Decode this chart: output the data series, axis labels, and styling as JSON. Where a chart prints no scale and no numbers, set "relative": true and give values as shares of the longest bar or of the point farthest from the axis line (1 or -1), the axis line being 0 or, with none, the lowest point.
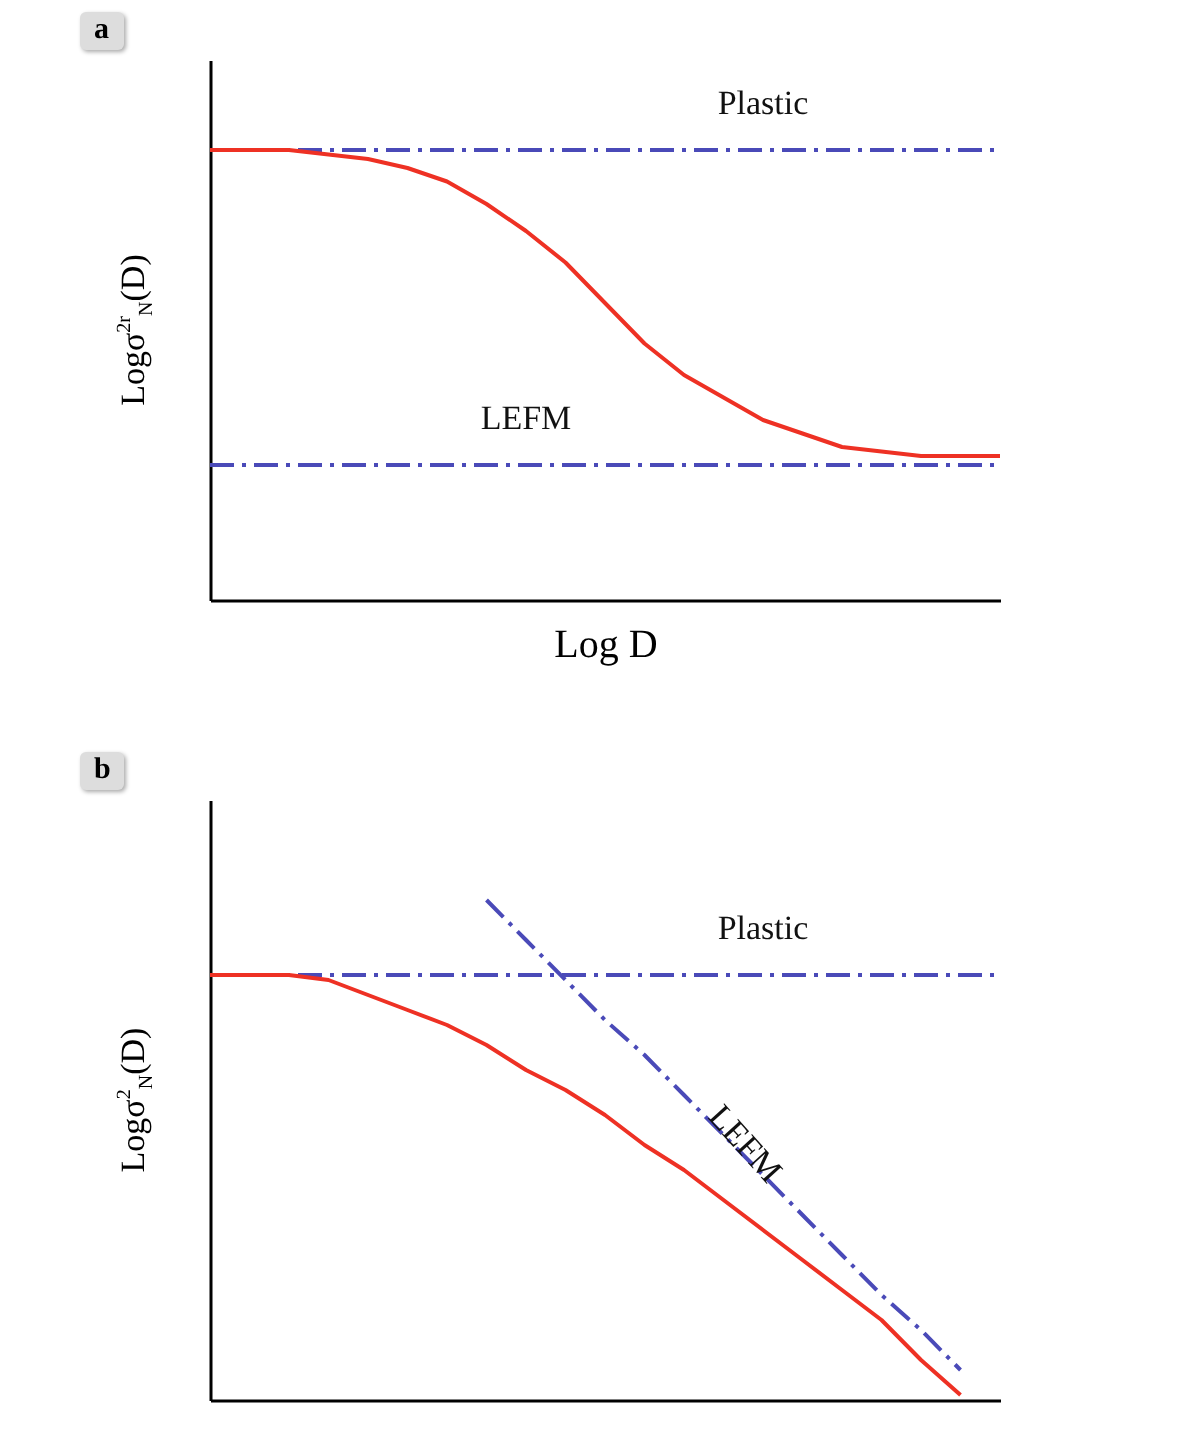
{
  "chart_data": [
    {
      "type": "line",
      "title": "a",
      "xlabel": "Log D",
      "ylabel": "Logσ$^{2r}$$_{N}$(D)",
      "relative": true,
      "grid": false,
      "legend": false,
      "marker": "none",
      "categories": [
        null,
        null,
        null,
        null,
        null,
        null,
        null,
        null,
        null,
        null,
        null,
        null,
        null,
        null,
        null,
        null,
        null,
        null,
        null,
        null,
        null
      ],
      "series": [
        {
          "color": "#ee3124",
          "line_style": "solid",
          "values": [
            1,
            1,
            1,
            0.99,
            0.98,
            0.96,
            0.93,
            0.88,
            0.82,
            0.75,
            0.66,
            0.57,
            0.5,
            0.45,
            0.4,
            0.37,
            0.34,
            0.33,
            0.32,
            0.32,
            0.32
          ]
        },
        {
          "name": "Plastic",
          "color": "#4a4ab8",
          "line_style": "dashed",
          "values": [
            1,
            1,
            1,
            1,
            1,
            1,
            1,
            1,
            1,
            1,
            1,
            1,
            1,
            1,
            1,
            1,
            1,
            1,
            1,
            1,
            1
          ]
        },
        {
          "name": "LEFM",
          "color": "#4a4ab8",
          "line_style": "dashed",
          "values": [
            0.3,
            0.3,
            0.3,
            0.3,
            0.3,
            0.3,
            0.3,
            0.3,
            0.3,
            0.3,
            0.3,
            0.3,
            0.3,
            0.3,
            0.3,
            0.3,
            0.3,
            0.3,
            0.3,
            0.3,
            0.3
          ]
        }
      ]
    },
    {
      "type": "line",
      "title": "b",
      "ylabel": "Logσ$^{2}$$_{N}$(D)",
      "relative": true,
      "grid": false,
      "legend": false,
      "marker": "none",
      "categories": [
        null,
        null,
        null,
        null,
        null,
        null,
        null,
        null,
        null,
        null,
        null,
        null,
        null,
        null,
        null,
        null,
        null,
        null,
        null,
        null,
        null
      ],
      "series": [
        {
          "color": "#ee3124",
          "line_style": "solid",
          "values": [
            0.85,
            0.85,
            0.85,
            0.84,
            0.81,
            0.78,
            0.75,
            0.71,
            0.66,
            0.62,
            0.57,
            0.51,
            0.46,
            0.4,
            0.34,
            0.28,
            0.22,
            0.16,
            0.08,
            0.01,
            null
          ]
        },
        {
          "name": "Plastic",
          "color": "#4a4ab8",
          "line_style": "dashed",
          "values": [
            0.85,
            0.85,
            0.85,
            0.85,
            0.85,
            0.85,
            0.85,
            0.85,
            0.85,
            0.85,
            0.85,
            0.85,
            0.85,
            0.85,
            0.85,
            0.85,
            0.85,
            0.85,
            0.85,
            0.85,
            0.85
          ]
        },
        {
          "name": "LEFM",
          "color": "#4a4ab8",
          "line_style": "dashed",
          "values": [
            null,
            null,
            null,
            null,
            null,
            null,
            null,
            1,
            0.92,
            0.84,
            0.76,
            0.69,
            0.61,
            0.53,
            0.45,
            0.37,
            0.29,
            0.21,
            0.14,
            0.06,
            null
          ]
        }
      ]
    }
  ]
}
